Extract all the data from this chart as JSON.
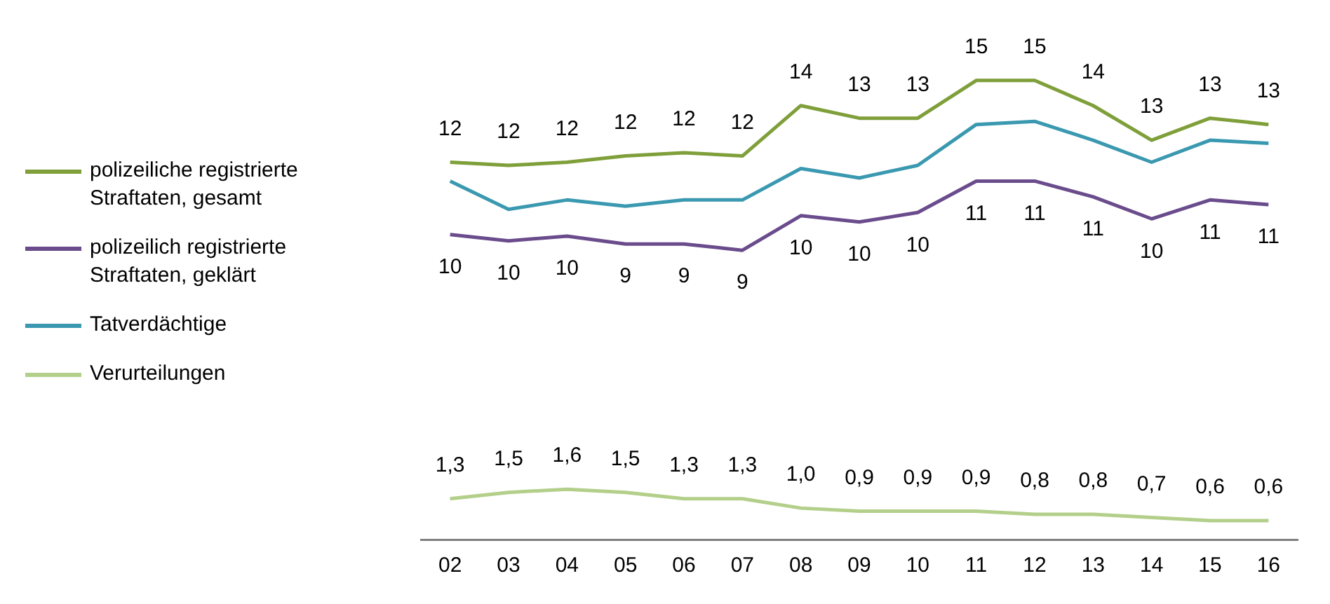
{
  "chart_data": {
    "type": "line",
    "categories": [
      "02",
      "03",
      "04",
      "05",
      "06",
      "07",
      "08",
      "09",
      "10",
      "11",
      "12",
      "13",
      "14",
      "15",
      "16"
    ],
    "tick_labels": "x",
    "grid": false,
    "legend": "left",
    "marker": "none",
    "series": [
      {
        "name": "polizeiliche registrierte Straftaten, gesamt",
        "color": "#7f9f3a",
        "values": [
          12.0,
          11.9,
          12.0,
          12.2,
          12.3,
          12.2,
          13.8,
          13.4,
          13.4,
          14.6,
          14.6,
          13.8,
          12.7,
          13.4,
          13.2
        ],
        "value_labels": [
          "12",
          "12",
          "12",
          "12",
          "12",
          "12",
          "14",
          "13",
          "13",
          "15",
          "15",
          "14",
          "13",
          "13",
          "13"
        ]
      },
      {
        "name": "polizeilich registrierte Straftaten, geklärt",
        "color": "#6a4c8c",
        "values": [
          9.7,
          9.5,
          9.65,
          9.4,
          9.4,
          9.2,
          10.3,
          10.1,
          10.4,
          11.4,
          11.4,
          10.9,
          10.2,
          10.8,
          10.65
        ],
        "value_labels": [
          "10",
          "10",
          "10",
          "9",
          "9",
          "9",
          "10",
          "10",
          "10",
          "11",
          "11",
          "11",
          "10",
          "11",
          "11"
        ]
      },
      {
        "name": "Tatverdächtige",
        "color": "#3a99b0",
        "values": [
          11.4,
          10.5,
          10.8,
          10.6,
          10.8,
          10.8,
          11.8,
          11.5,
          11.9,
          13.2,
          13.3,
          12.7,
          12.0,
          12.7,
          12.6
        ]
      },
      {
        "name": "Verurteilungen",
        "color": "#b3cf8a",
        "values": [
          1.3,
          1.5,
          1.6,
          1.5,
          1.3,
          1.3,
          1.0,
          0.9,
          0.9,
          0.9,
          0.8,
          0.8,
          0.7,
          0.6,
          0.6
        ],
        "value_labels": [
          "1,3",
          "1,5",
          "1,6",
          "1,5",
          "1,3",
          "1,3",
          "1,0",
          "0,9",
          "0,9",
          "0,9",
          "0,8",
          "0,8",
          "0,7",
          "0,6",
          "0,6"
        ]
      }
    ]
  }
}
